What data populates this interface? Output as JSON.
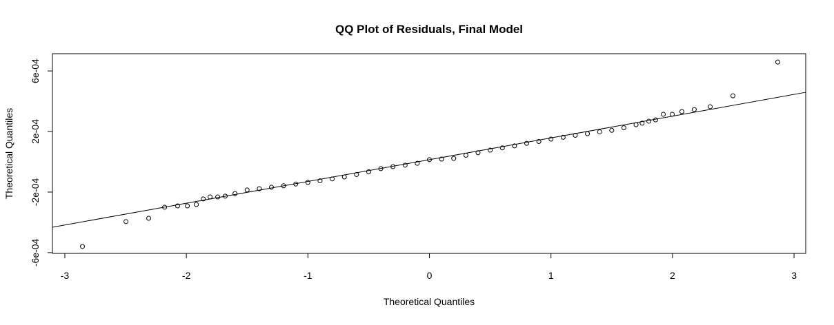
{
  "chart_data": {
    "type": "scatter",
    "title": "QQ Plot of Residuals, Final Model",
    "xlabel": "Theoretical Quantiles",
    "ylabel": "Theoretical Quantiles",
    "xlim": [
      -3.102,
      3.096
    ],
    "ylim": [
      -0.000605,
      0.000714
    ],
    "xticks": [
      -3,
      -2,
      -1,
      0,
      1,
      2,
      3
    ],
    "yticks": [
      {
        "value": -0.0006,
        "label": "-6e-04"
      },
      {
        "value": -0.0002,
        "label": "-2e-04"
      },
      {
        "value": 0.0002,
        "label": "2e-04"
      },
      {
        "value": 0.0006,
        "label": "6e-04"
      }
    ],
    "color": "#000000",
    "x": [
      -2.855,
      -2.497,
      -2.31,
      -2.179,
      -2.072,
      -1.992,
      -1.918,
      -1.861,
      -1.805,
      -1.742,
      -1.68,
      -1.6,
      -1.5,
      -1.4,
      -1.3,
      -1.2,
      -1.1,
      -1.0,
      -0.9,
      -0.8,
      -0.7,
      -0.6,
      -0.5,
      -0.4,
      -0.3,
      -0.2,
      -0.1,
      0.0,
      0.1,
      0.2,
      0.3,
      0.4,
      0.5,
      0.6,
      0.7,
      0.8,
      0.9,
      1.0,
      1.1,
      1.2,
      1.3,
      1.4,
      1.5,
      1.6,
      1.7,
      1.75,
      1.805,
      1.861,
      1.924,
      1.998,
      2.077,
      2.179,
      2.31,
      2.497,
      2.866
    ],
    "y": [
      -0.000559,
      -0.000395,
      -0.000373,
      -0.0003,
      -0.000291,
      -0.000291,
      -0.000282,
      -0.000245,
      -0.000232,
      -0.000232,
      -0.000227,
      -0.00021,
      -0.000186,
      -0.000178,
      -0.000168,
      -0.000158,
      -0.000147,
      -0.000136,
      -0.000126,
      -0.000113,
      -0.0001,
      -8.4e-05,
      -6.6e-05,
      -4.5e-05,
      -3.2e-05,
      -2.2e-05,
      -1e-05,
      1.4e-05,
      1.8e-05,
      2.2e-05,
      4.3e-05,
      6e-05,
      7.7e-05,
      9.2e-05,
      0.000105,
      0.000122,
      0.000134,
      0.00015,
      0.000162,
      0.000175,
      0.000186,
      0.000198,
      0.000208,
      0.000225,
      0.000245,
      0.000255,
      0.000268,
      0.000277,
      0.000314,
      0.000314,
      0.000332,
      0.000345,
      0.000364,
      0.000436,
      0.000659
    ],
    "reference_line": {
      "x": [
        -3.102,
        3.096
      ],
      "y": [
        -0.000432,
        0.000459
      ]
    }
  }
}
